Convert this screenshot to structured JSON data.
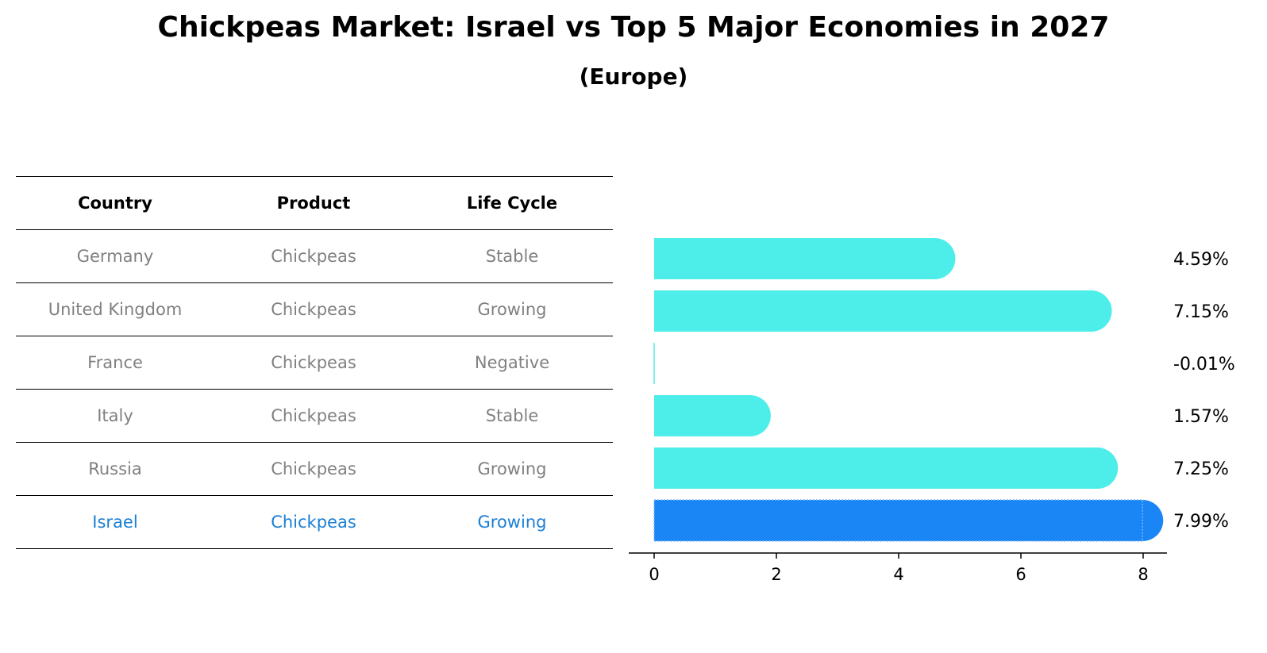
{
  "title": "Chickpeas Market: Israel vs Top 5 Major Economies in 2027",
  "subtitle": "(Europe)",
  "table": {
    "headers": [
      "Country",
      "Product",
      "Life Cycle"
    ],
    "rows": [
      [
        "Germany",
        "Chickpeas",
        "Stable"
      ],
      [
        "United Kingdom",
        "Chickpeas",
        "Growing"
      ],
      [
        "France",
        "Chickpeas",
        "Negative"
      ],
      [
        "Italy",
        "Chickpeas",
        "Stable"
      ],
      [
        "Russia",
        "Chickpeas",
        "Growing"
      ],
      [
        "Israel",
        "Chickpeas",
        "Growing"
      ]
    ]
  },
  "colors": {
    "bar": "#4deeea",
    "highlight": "#1a85f5",
    "highlight_text": "#1a7fd4"
  },
  "chart_data": {
    "type": "bar",
    "orientation": "horizontal",
    "categories": [
      "Germany",
      "United Kingdom",
      "France",
      "Italy",
      "Russia",
      "Israel"
    ],
    "values": [
      4.59,
      7.15,
      -0.01,
      1.57,
      7.25,
      7.99
    ],
    "value_labels": [
      "4.59%",
      "7.15%",
      "-0.01%",
      "1.57%",
      "7.25%",
      "7.99%"
    ],
    "highlight": "Israel",
    "xlim": [
      0,
      8.4
    ],
    "xticks": [
      0,
      2,
      4,
      6,
      8
    ],
    "xlabel": "",
    "ylabel": ""
  }
}
